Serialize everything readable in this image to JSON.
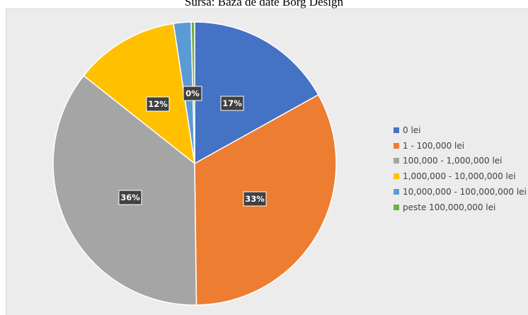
{
  "source_caption": "Sursa: Baza de date Borg Design",
  "chart_data": {
    "type": "pie",
    "title": "",
    "categories": [
      "0 lei",
      "1 - 100,000 lei",
      "100,000 - 1,000,000 lei",
      "1,000,000 - 10,000,000 lei",
      "10,000,000 - 100,000,000 lei",
      "peste 100,000,000 lei"
    ],
    "values": [
      17,
      33,
      36,
      12,
      2,
      0.4
    ],
    "data_labels": [
      "17%",
      "33%",
      "36%",
      "12%",
      "",
      "0%"
    ],
    "colors": [
      "#4472C4",
      "#ED7D31",
      "#A5A5A5",
      "#FFC000",
      "#5B9BD5",
      "#70AD47"
    ],
    "legend_position": "right",
    "background": "#ececec"
  }
}
